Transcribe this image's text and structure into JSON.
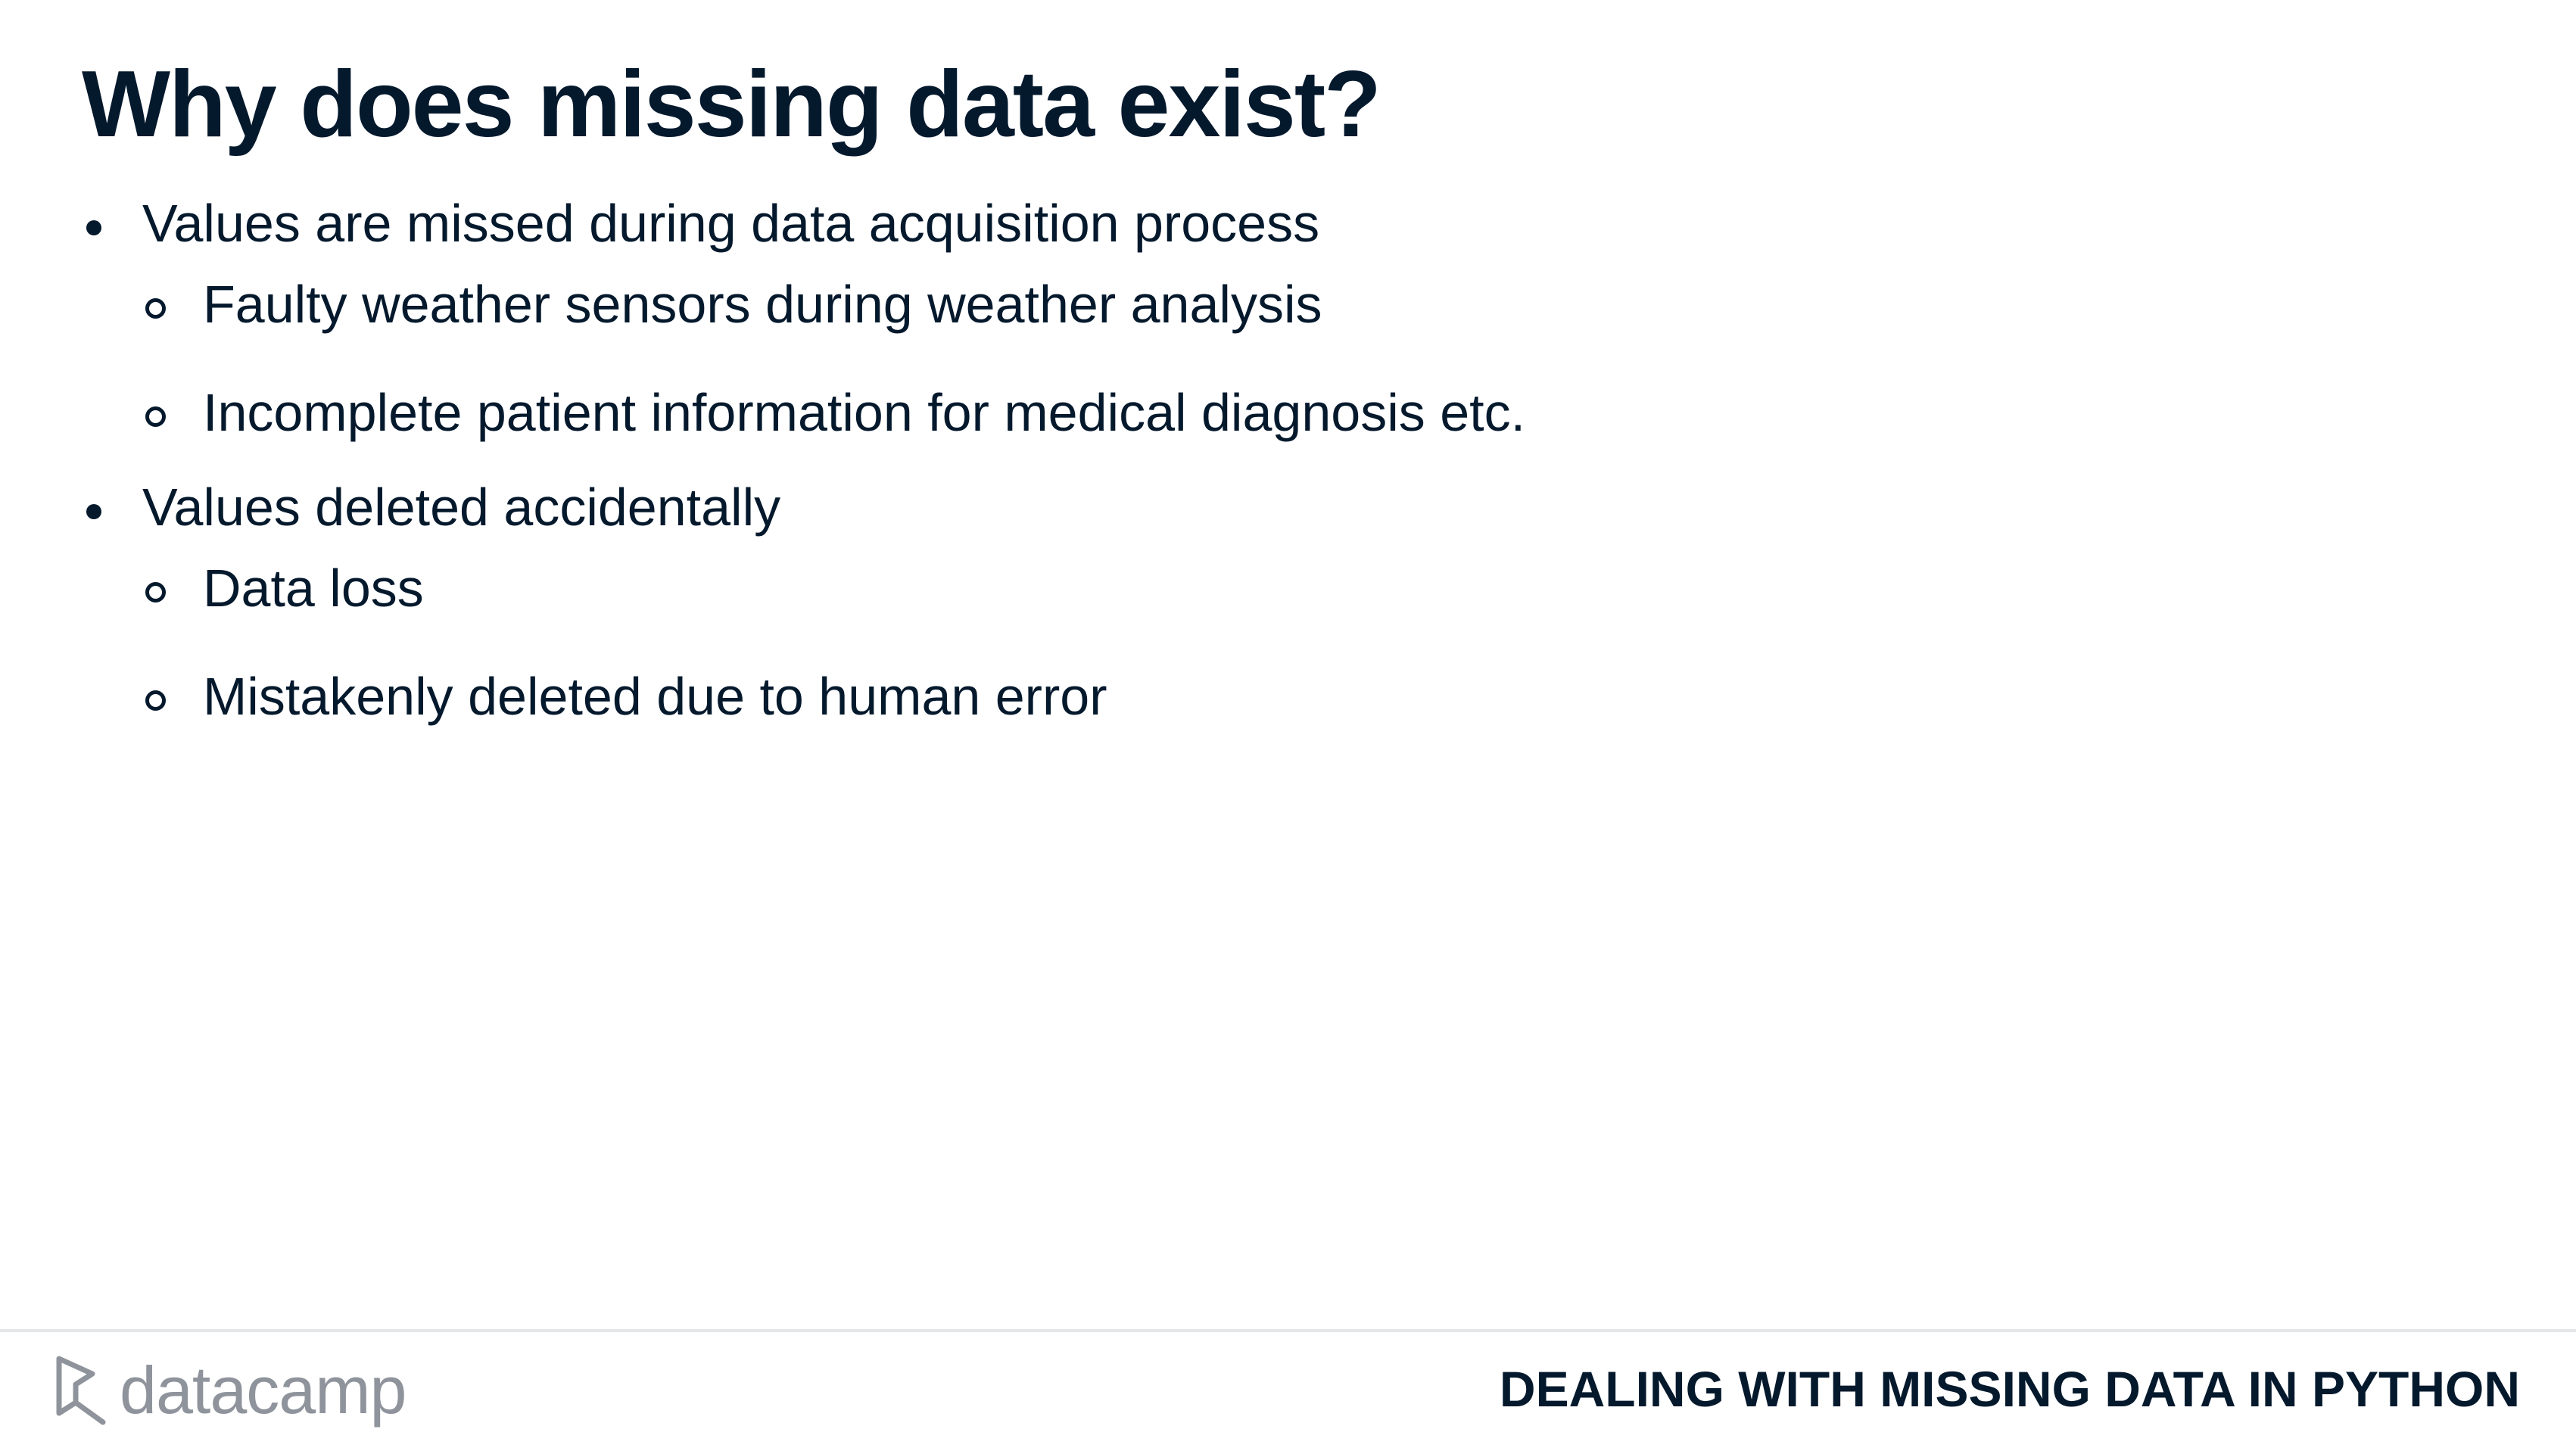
{
  "slide": {
    "title": "Why does missing data exist?",
    "bullets": [
      {
        "text": "Values are missed during data acquisition process",
        "sub": [
          "Faulty weather sensors during weather analysis",
          "Incomplete patient information for medical diagnosis etc."
        ]
      },
      {
        "text": "Values deleted accidentally",
        "sub": [
          "Data loss",
          "Mistakenly deleted due to human error"
        ]
      }
    ]
  },
  "footer": {
    "logo_text": "datacamp",
    "logo_icon": "datacamp-logo-icon",
    "course_name": "DEALING WITH MISSING DATA IN PYTHON"
  },
  "colors": {
    "text": "#05192d",
    "logo": "#8f949c",
    "divider": "#e5e6e8",
    "background": "#ffffff"
  }
}
